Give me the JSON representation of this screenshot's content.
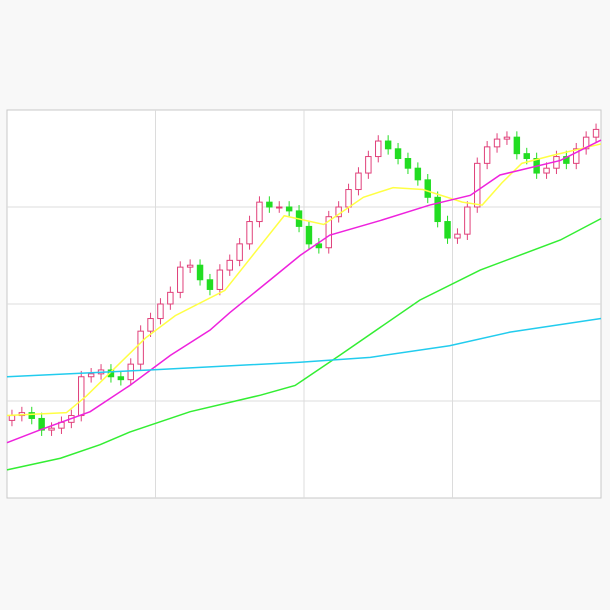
{
  "chart_data": {
    "type": "candlestick",
    "xlim": [
      0,
      60
    ],
    "xticks": [
      15,
      30,
      45
    ],
    "ylim": [
      0,
      400
    ],
    "yticks": [
      100,
      200,
      300
    ],
    "grid": true,
    "up_color": "#e0407a",
    "down_color": "#22dd22",
    "open": [
      80,
      85,
      88,
      82,
      70,
      72,
      78,
      85,
      125,
      128,
      132,
      125,
      122,
      138,
      172,
      185,
      200,
      212,
      238,
      240,
      225,
      215,
      235,
      245,
      262,
      285,
      305,
      300,
      300,
      296,
      280,
      262,
      258,
      290,
      300,
      318,
      335,
      352,
      368,
      360,
      350,
      340,
      328,
      310,
      285,
      268,
      272,
      300,
      345,
      362,
      370,
      372,
      355,
      350,
      335,
      340,
      352,
      345,
      360,
      372
    ],
    "high": [
      91,
      94,
      94,
      88,
      78,
      84,
      91,
      131,
      134,
      138,
      138,
      131,
      144,
      178,
      191,
      206,
      218,
      244,
      246,
      246,
      231,
      241,
      251,
      268,
      291,
      311,
      311,
      306,
      306,
      302,
      286,
      268,
      296,
      306,
      324,
      341,
      358,
      374,
      374,
      366,
      356,
      346,
      334,
      316,
      291,
      278,
      306,
      351,
      368,
      376,
      378,
      378,
      361,
      356,
      346,
      358,
      358,
      366,
      378,
      386
    ],
    "low": [
      74,
      79,
      76,
      64,
      64,
      66,
      72,
      79,
      119,
      122,
      119,
      116,
      116,
      132,
      166,
      179,
      194,
      206,
      232,
      219,
      209,
      209,
      229,
      239,
      256,
      279,
      294,
      294,
      290,
      274,
      256,
      252,
      252,
      284,
      294,
      312,
      329,
      346,
      354,
      344,
      334,
      322,
      304,
      279,
      262,
      262,
      266,
      294,
      339,
      356,
      364,
      349,
      344,
      329,
      329,
      334,
      339,
      339,
      354,
      366
    ],
    "close": [
      85,
      88,
      82,
      70,
      72,
      78,
      85,
      125,
      128,
      132,
      125,
      122,
      138,
      172,
      185,
      200,
      212,
      238,
      240,
      225,
      215,
      235,
      245,
      262,
      285,
      305,
      300,
      300,
      296,
      280,
      262,
      258,
      290,
      300,
      318,
      335,
      352,
      368,
      360,
      350,
      340,
      328,
      310,
      285,
      268,
      272,
      300,
      345,
      362,
      370,
      372,
      355,
      350,
      335,
      340,
      352,
      345,
      360,
      372,
      380
    ],
    "lines": [
      {
        "color": "#ffff44",
        "x": [
          0,
          6,
          8,
          14,
          17,
          22,
          28,
          32,
          36,
          39,
          42,
          46,
          48,
          50,
          52,
          55,
          60
        ],
        "values": [
          85,
          88,
          105,
          165,
          188,
          214,
          291,
          282,
          310,
          320,
          318,
          305,
          302,
          325,
          345,
          353,
          365
        ]
      },
      {
        "color": "#ee22dd",
        "x": [
          0,
          3.3,
          8.4,
          12.4,
          16.5,
          20.5,
          22.5,
          26.6,
          29.6,
          32.6,
          37.7,
          42.7,
          46.8,
          49.8,
          55.9,
          60
        ],
        "values": [
          57,
          70,
          89,
          116,
          147,
          173,
          191,
          225,
          250,
          271,
          286,
          302,
          312,
          333,
          348,
          369
        ]
      },
      {
        "color": "#33ee33",
        "x": [
          0,
          5.4,
          9.4,
          12.4,
          18.5,
          25.6,
          29.1,
          33.6,
          41.7,
          47.8,
          55.9,
          60
        ],
        "values": [
          29,
          41,
          55,
          68,
          89,
          106,
          116,
          147,
          204,
          235,
          266,
          288
        ]
      },
      {
        "color": "#22ccee",
        "x": [
          0,
          14.4,
          29.6,
          36.7,
          44.7,
          50.8,
          60
        ],
        "values": [
          125,
          132,
          140,
          145,
          157,
          171,
          185
        ]
      }
    ]
  }
}
